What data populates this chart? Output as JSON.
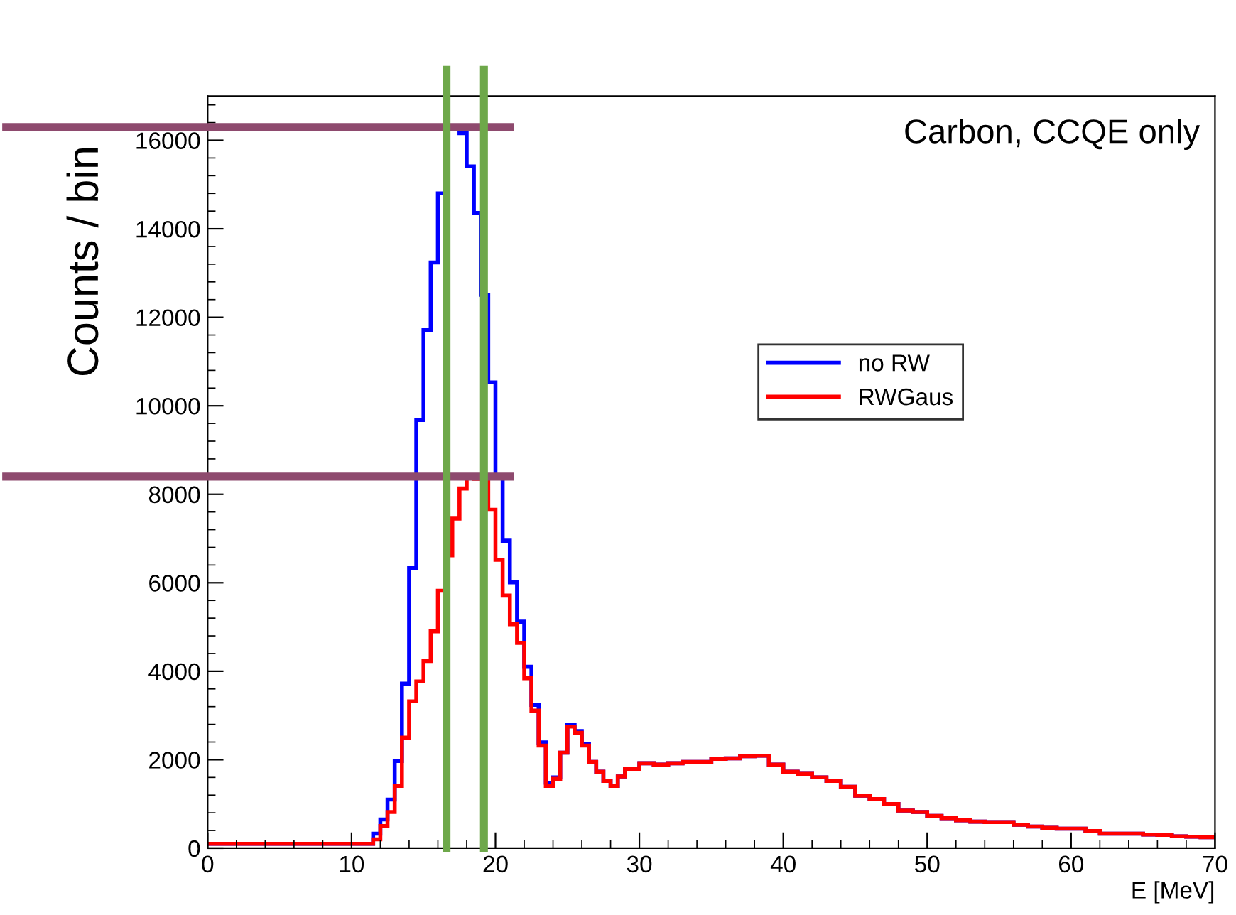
{
  "chart_data": {
    "type": "histogram",
    "ylabel": "Counts / bin",
    "xlabel": "E [MeV]",
    "annotations": [
      "Carbon, CCQE only"
    ],
    "bins": [
      0,
      11.5,
      12,
      12.5,
      13,
      13.5,
      14,
      14.5,
      15,
      15.5,
      16,
      16.5,
      17,
      17.5,
      18,
      18.5,
      19,
      19.5,
      20,
      20.5,
      21,
      21.5,
      22,
      22.5,
      23,
      23.5,
      24,
      24.5,
      25,
      25.5,
      26,
      26.5,
      27,
      27.5,
      28,
      28.5,
      29,
      30,
      31,
      32,
      33,
      34,
      35,
      36,
      37,
      38,
      39,
      40,
      41,
      42,
      43,
      44,
      45,
      46,
      47,
      48,
      49,
      50,
      51,
      52,
      53,
      54,
      55,
      56,
      57,
      58,
      59,
      60,
      61,
      62,
      63,
      64,
      65,
      66,
      67,
      68,
      69,
      70
    ],
    "series": [
      {
        "name": "no RW",
        "color": "#0000ff",
        "values": [
          100,
          330,
          650,
          1100,
          1970,
          3720,
          6330,
          9680,
          11710,
          13240,
          14800,
          16250,
          16300,
          16160,
          15410,
          14360,
          12510,
          10530,
          8380,
          6950,
          6010,
          5120,
          4100,
          3240,
          2390,
          1480,
          1600,
          2160,
          2780,
          2650,
          2350,
          1950,
          1730,
          1520,
          1410,
          1620,
          1790,
          1920,
          1890,
          1920,
          1950,
          1950,
          2020,
          2030,
          2080,
          2090,
          1890,
          1730,
          1680,
          1600,
          1520,
          1390,
          1190,
          1110,
          1000,
          850,
          820,
          730,
          680,
          630,
          600,
          590,
          590,
          530,
          490,
          460,
          440,
          440,
          390,
          330,
          330,
          330,
          310,
          300,
          270,
          260,
          250
        ]
      },
      {
        "name": "RWGaus",
        "color": "#ff0000",
        "values": [
          100,
          200,
          500,
          820,
          1410,
          2500,
          3320,
          3770,
          4230,
          4900,
          5820,
          6620,
          7450,
          8130,
          8420,
          8350,
          8400,
          7650,
          6520,
          5710,
          5060,
          4640,
          3840,
          3110,
          2320,
          1410,
          1570,
          2160,
          2750,
          2610,
          2320,
          1950,
          1730,
          1520,
          1410,
          1620,
          1790,
          1920,
          1890,
          1920,
          1950,
          1950,
          2020,
          2030,
          2080,
          2090,
          1890,
          1730,
          1680,
          1600,
          1520,
          1390,
          1190,
          1110,
          1000,
          850,
          820,
          730,
          680,
          630,
          600,
          590,
          590,
          530,
          490,
          460,
          440,
          440,
          390,
          330,
          330,
          330,
          310,
          300,
          270,
          260,
          250
        ]
      }
    ],
    "ref_lines": [
      {
        "axis": "y",
        "value": 16300,
        "color": "#8e4a6e"
      },
      {
        "axis": "y",
        "value": 8400,
        "color": "#8e4a6e"
      },
      {
        "axis": "x",
        "value": 16.6,
        "color": "#6ea84a"
      },
      {
        "axis": "x",
        "value": 19.2,
        "color": "#6ea84a"
      }
    ],
    "xlim": [
      0,
      70
    ],
    "xticks": [
      0,
      10,
      20,
      30,
      40,
      50,
      60,
      70
    ],
    "ylim": [
      0,
      17000
    ],
    "yticks": [
      0,
      2000,
      4000,
      6000,
      8000,
      10000,
      12000,
      14000,
      16000
    ],
    "grid": false,
    "legend": "right"
  }
}
